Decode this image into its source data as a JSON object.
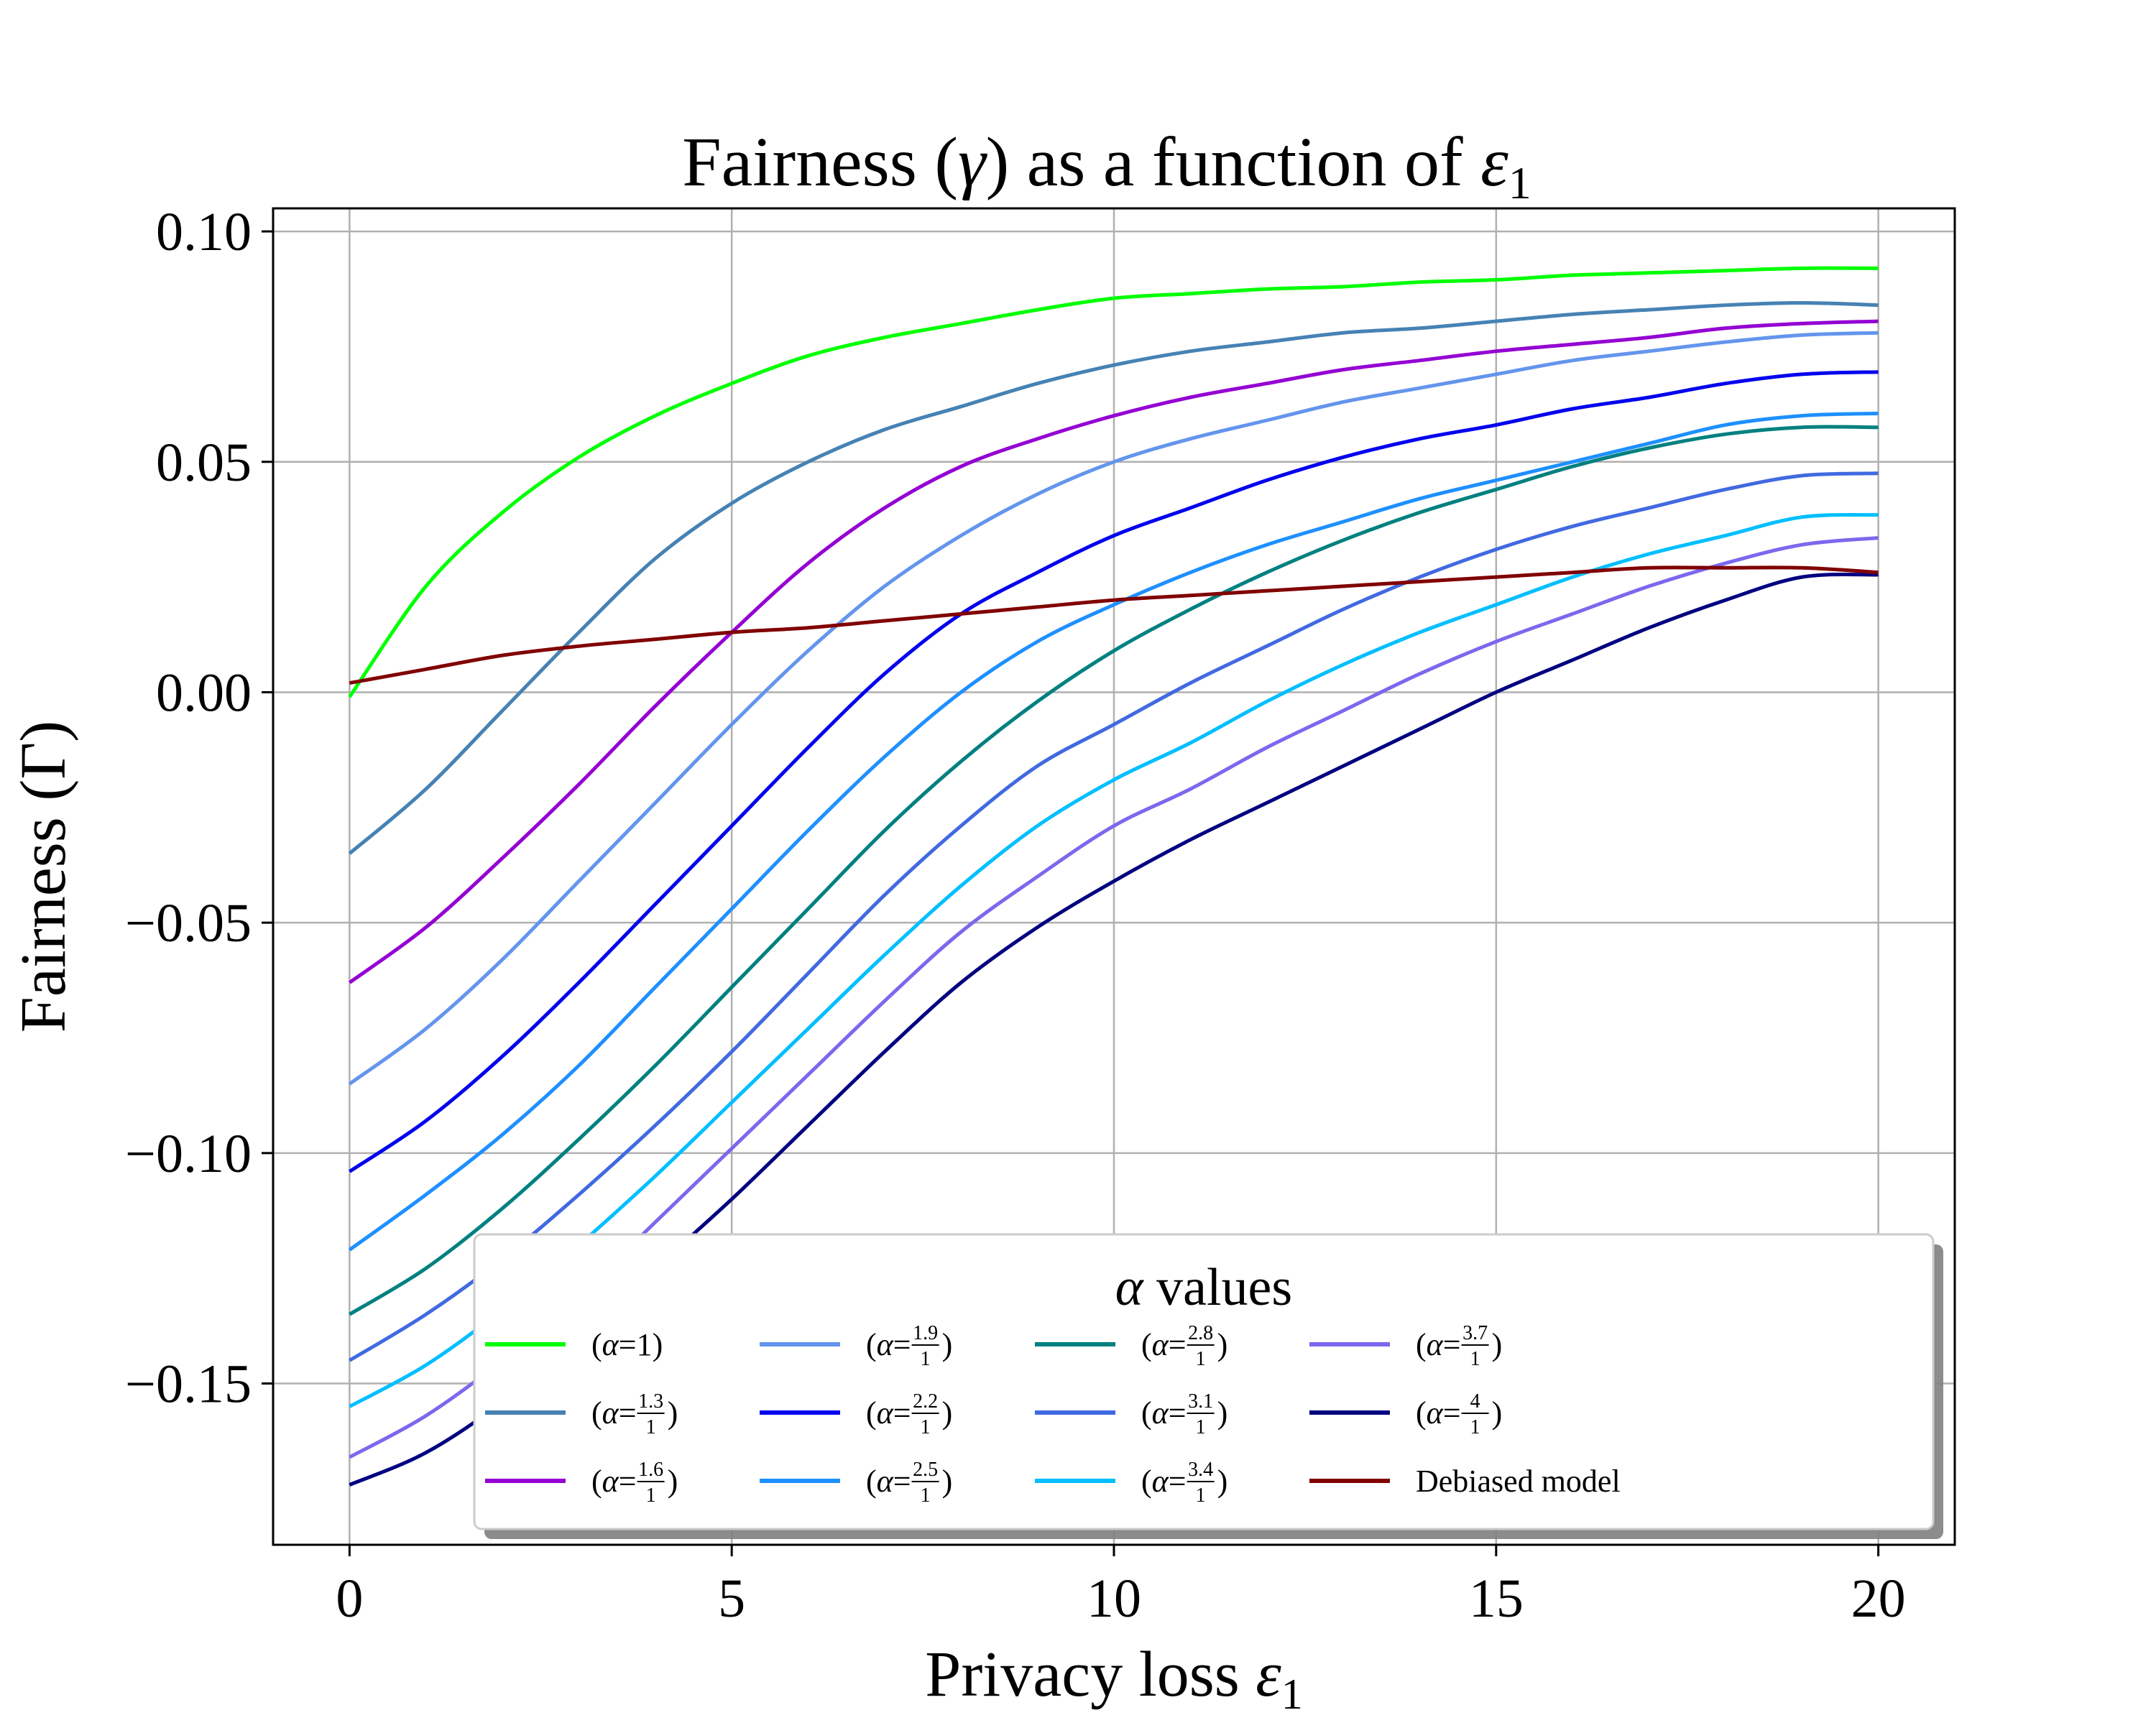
{
  "chart_data": {
    "type": "line",
    "title_parts": [
      "Fairness (",
      "γ",
      ") as a function of ",
      "ε",
      "1"
    ],
    "xlabel_parts": [
      "Privacy loss ",
      "ε",
      "1"
    ],
    "ylabel": "Fairness (Γ)",
    "xlim": [
      -1,
      21
    ],
    "ylim": [
      -0.185,
      0.105
    ],
    "grid": true,
    "xticks": [
      0,
      5,
      10,
      15,
      20
    ],
    "xtick_labels": [
      "0",
      "5",
      "10",
      "15",
      "20"
    ],
    "yticks": [
      0.1,
      0.05,
      0.0,
      -0.05,
      -0.1,
      -0.15
    ],
    "ytick_labels": [
      "0.10",
      "0.05",
      "0.00",
      "−0.05",
      "−0.10",
      "−0.15"
    ],
    "x": [
      0,
      1,
      2,
      3,
      4,
      5,
      6,
      7,
      8,
      9,
      10,
      11,
      12,
      13,
      14,
      15,
      16,
      17,
      18,
      19,
      20
    ],
    "legend": {
      "title_symbol": "α",
      "title_text": " values",
      "placement": "lower-right",
      "columns": 5
    },
    "series": [
      {
        "name": "(α=1)",
        "prefix": "(α=",
        "num": "1",
        "color": "#00ff00",
        "values": [
          -0.001,
          0.023,
          0.039,
          0.051,
          0.06,
          0.067,
          0.073,
          0.077,
          0.08,
          0.083,
          0.0855,
          0.0865,
          0.0875,
          0.088,
          0.089,
          0.0895,
          0.0905,
          0.091,
          0.0915,
          0.092,
          0.092
        ]
      },
      {
        "name": "(α=1.3/1)",
        "prefix": "(α=",
        "num": "1.3",
        "den": "1",
        "color": "#4682b4",
        "values": [
          -0.035,
          -0.021,
          -0.004,
          0.013,
          0.029,
          0.041,
          0.05,
          0.057,
          0.062,
          0.067,
          0.071,
          0.074,
          0.076,
          0.078,
          0.079,
          0.0805,
          0.082,
          0.083,
          0.084,
          0.0845,
          0.084
        ]
      },
      {
        "name": "(α=1.6/1)",
        "prefix": "(α=",
        "num": "1.6",
        "den": "1",
        "color": "#9400d3",
        "values": [
          -0.063,
          -0.051,
          -0.036,
          -0.02,
          -0.003,
          0.013,
          0.028,
          0.04,
          0.049,
          0.055,
          0.06,
          0.064,
          0.067,
          0.07,
          0.072,
          0.074,
          0.0755,
          0.077,
          0.079,
          0.08,
          0.0805
        ]
      },
      {
        "name": "(α=1.9/1)",
        "prefix": "(α=",
        "num": "1.9",
        "den": "1",
        "color": "#6495ed",
        "values": [
          -0.085,
          -0.073,
          -0.058,
          -0.041,
          -0.024,
          -0.007,
          0.009,
          0.023,
          0.034,
          0.043,
          0.05,
          0.055,
          0.059,
          0.063,
          0.066,
          0.069,
          0.072,
          0.074,
          0.076,
          0.0775,
          0.078
        ]
      },
      {
        "name": "(α=2.2/1)",
        "prefix": "(α=",
        "num": "2.2",
        "den": "1",
        "color": "#0000ee",
        "values": [
          -0.104,
          -0.093,
          -0.079,
          -0.063,
          -0.046,
          -0.029,
          -0.012,
          0.004,
          0.017,
          0.026,
          0.034,
          0.04,
          0.046,
          0.051,
          0.055,
          0.058,
          0.0615,
          0.064,
          0.067,
          0.069,
          0.0695
        ]
      },
      {
        "name": "(α=2.5/1)",
        "prefix": "(α=",
        "num": "2.5",
        "den": "1",
        "color": "#1e90ff",
        "values": [
          -0.121,
          -0.109,
          -0.096,
          -0.081,
          -0.064,
          -0.047,
          -0.03,
          -0.014,
          0.0,
          0.011,
          0.019,
          0.026,
          0.032,
          0.037,
          0.042,
          0.046,
          0.05,
          0.054,
          0.058,
          0.06,
          0.0605
        ]
      },
      {
        "name": "(α=2.8/1)",
        "prefix": "(α=",
        "num": "2.8",
        "den": "1",
        "color": "#008080",
        "values": [
          -0.135,
          -0.125,
          -0.112,
          -0.097,
          -0.081,
          -0.064,
          -0.047,
          -0.03,
          -0.015,
          -0.002,
          0.009,
          0.018,
          0.026,
          0.033,
          0.039,
          0.044,
          0.049,
          0.053,
          0.056,
          0.0575,
          0.0575
        ]
      },
      {
        "name": "(α=3.1/1)",
        "prefix": "(α=",
        "num": "3.1",
        "den": "1",
        "color": "#4169e1",
        "values": [
          -0.145,
          -0.135,
          -0.123,
          -0.109,
          -0.094,
          -0.078,
          -0.061,
          -0.044,
          -0.029,
          -0.016,
          -0.007,
          0.002,
          0.01,
          0.018,
          0.025,
          0.031,
          0.036,
          0.04,
          0.044,
          0.047,
          0.0475
        ]
      },
      {
        "name": "(α=3.4/1)",
        "prefix": "(α=",
        "num": "3.4",
        "den": "1",
        "color": "#00bfff",
        "values": [
          -0.155,
          -0.146,
          -0.134,
          -0.12,
          -0.105,
          -0.089,
          -0.073,
          -0.057,
          -0.042,
          -0.029,
          -0.019,
          -0.011,
          -0.002,
          0.006,
          0.013,
          0.019,
          0.025,
          0.03,
          0.034,
          0.038,
          0.0385
        ]
      },
      {
        "name": "(α=3.7/1)",
        "prefix": "(α=",
        "num": "3.7",
        "den": "1",
        "color": "#7b68ee",
        "values": [
          -0.166,
          -0.157,
          -0.145,
          -0.131,
          -0.115,
          -0.099,
          -0.083,
          -0.067,
          -0.052,
          -0.04,
          -0.029,
          -0.021,
          -0.012,
          -0.004,
          0.004,
          0.011,
          0.017,
          0.023,
          0.028,
          0.032,
          0.0335
        ]
      },
      {
        "name": "(α=4/1)",
        "prefix": "(α=",
        "num": "4",
        "den": "1",
        "color": "#000080",
        "values": [
          -0.172,
          -0.165,
          -0.154,
          -0.14,
          -0.125,
          -0.11,
          -0.094,
          -0.078,
          -0.063,
          -0.051,
          -0.041,
          -0.032,
          -0.024,
          -0.016,
          -0.008,
          0.0,
          0.007,
          0.014,
          0.02,
          0.025,
          0.0255
        ]
      },
      {
        "name": "Debiased model",
        "color": "#800000",
        "values": [
          0.002,
          0.005,
          0.008,
          0.01,
          0.0115,
          0.013,
          0.014,
          0.0155,
          0.017,
          0.0185,
          0.02,
          0.021,
          0.022,
          0.023,
          0.024,
          0.025,
          0.026,
          0.027,
          0.027,
          0.027,
          0.026
        ]
      }
    ]
  }
}
